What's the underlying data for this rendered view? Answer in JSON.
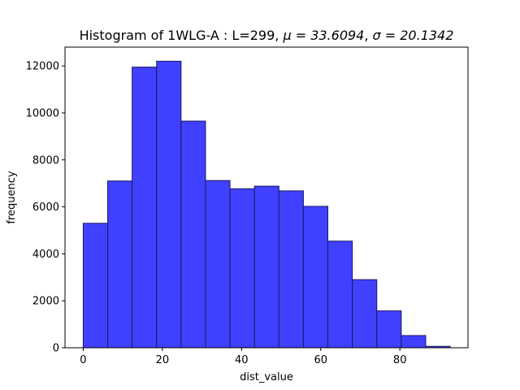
{
  "chart_data": {
    "type": "bar",
    "title_prefix": "Histogram of 1WLG-A : L=299, ",
    "title_mu": "μ = 33.6094",
    "title_sep": ", ",
    "title_sigma": "σ = 20.1342",
    "xlabel": "dist_value",
    "ylabel": "frequency",
    "xlim": [
      -4.6,
      97.2
    ],
    "ylim": [
      0,
      12800
    ],
    "x_ticks": [
      0,
      20,
      40,
      60,
      80
    ],
    "y_ticks": [
      0,
      2000,
      4000,
      6000,
      8000,
      10000,
      12000
    ],
    "bin_edges": [
      0,
      6.18,
      12.36,
      18.54,
      24.72,
      30.9,
      37.08,
      43.26,
      49.44,
      55.62,
      61.8,
      67.98,
      74.16,
      80.34,
      86.52,
      92.7
    ],
    "values": [
      5300,
      7100,
      11950,
      12200,
      9650,
      7120,
      6770,
      6880,
      6680,
      6020,
      4540,
      2900,
      1570,
      520,
      60
    ],
    "bar_fill": "#4040ff",
    "bar_edge": "#1a1a60",
    "grid": false,
    "legend": "none"
  }
}
